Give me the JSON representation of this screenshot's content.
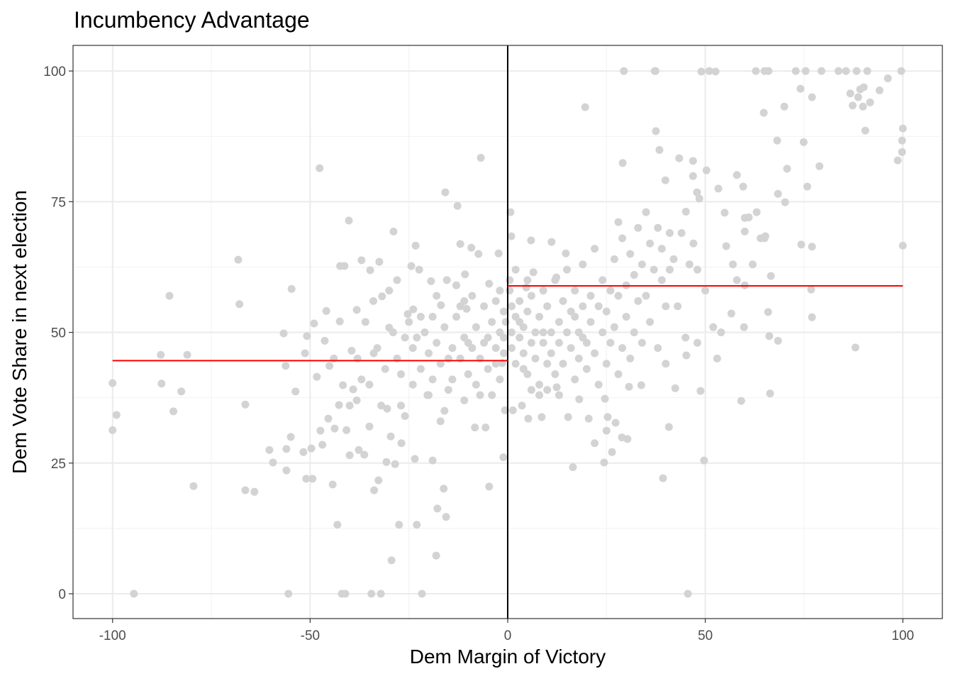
{
  "chart_data": {
    "type": "scatter",
    "title": "Incumbency Advantage",
    "xlabel": "Dem Margin of Victory",
    "ylabel": "Dem Vote Share in next election",
    "xlim": [
      -110,
      110
    ],
    "ylim": [
      -4.75,
      104.9
    ],
    "x_ticks": [
      -100,
      -50,
      0,
      50,
      100
    ],
    "x_tick_labels": [
      "-100",
      "-50",
      "0",
      "50",
      "100"
    ],
    "y_ticks": [
      0,
      25,
      50,
      75,
      100
    ],
    "y_tick_labels": [
      "0",
      "25",
      "50",
      "75",
      "100"
    ],
    "grid": true,
    "point_color": "#d3d3d3",
    "fit_color": "#ff0000",
    "cutoff_line": {
      "x": 0,
      "color": "#000000"
    },
    "fit_lines": [
      {
        "name": "left-fit",
        "x": [
          -100,
          0
        ],
        "y": [
          44.6,
          44.6
        ]
      },
      {
        "name": "right-fit",
        "x": [
          0,
          100
        ],
        "y": [
          58.9,
          58.9
        ]
      }
    ],
    "points": [
      [
        -100,
        40.3
      ],
      [
        -100,
        31.3
      ],
      [
        -99,
        34.2
      ],
      [
        -94.6,
        0
      ],
      [
        -87.8,
        45.7
      ],
      [
        -87.6,
        40.2
      ],
      [
        -85.6,
        57
      ],
      [
        -84.6,
        34.9
      ],
      [
        -82.6,
        38.7
      ],
      [
        -81.1,
        45.7
      ],
      [
        -79.5,
        20.6
      ],
      [
        -68.2,
        63.9
      ],
      [
        -67.9,
        55.4
      ],
      [
        -66.4,
        36.2
      ],
      [
        -66.4,
        19.8
      ],
      [
        -64.1,
        19.5
      ],
      [
        -60.3,
        27.5
      ],
      [
        -59.4,
        25.1
      ],
      [
        -56.7,
        49.8
      ],
      [
        -56.2,
        43.6
      ],
      [
        -56,
        27.7
      ],
      [
        -56,
        23.6
      ],
      [
        -55.5,
        0
      ],
      [
        -54.9,
        30
      ],
      [
        -54.7,
        58.3
      ],
      [
        -53.7,
        38.7
      ],
      [
        -51.7,
        27.1
      ],
      [
        -51.3,
        46
      ],
      [
        -51,
        22
      ],
      [
        -50.8,
        49.3
      ],
      [
        -49.7,
        27.8
      ],
      [
        -49.4,
        22
      ],
      [
        -49,
        51.7
      ],
      [
        -48.3,
        41.5
      ],
      [
        -47.6,
        81.4
      ],
      [
        -47.4,
        31.2
      ],
      [
        -46.9,
        28.5
      ],
      [
        -46.3,
        48.4
      ],
      [
        -45.9,
        54.1
      ],
      [
        -45.4,
        33.5
      ],
      [
        -45.1,
        43.6
      ],
      [
        -44.3,
        20.9
      ],
      [
        -43.8,
        31.6
      ],
      [
        -43.1,
        13.2
      ],
      [
        -42.7,
        36.1
      ],
      [
        -42.5,
        52.1
      ],
      [
        -42.4,
        62.7
      ],
      [
        -42,
        0
      ],
      [
        -41.7,
        39.9
      ],
      [
        -41.3,
        62.7
      ],
      [
        -41.1,
        0
      ],
      [
        -40.8,
        31.3
      ],
      [
        -40.2,
        71.4
      ],
      [
        -40,
        26.5
      ],
      [
        -39.5,
        46.5
      ],
      [
        -39.1,
        39.1
      ],
      [
        -38.2,
        37
      ],
      [
        -38.2,
        54.3
      ],
      [
        -37.7,
        27.5
      ],
      [
        -37,
        63.8
      ],
      [
        -36.3,
        26.6
      ],
      [
        -35,
        32
      ],
      [
        -34.8,
        61.9
      ],
      [
        -34.5,
        0
      ],
      [
        -33.9,
        46
      ],
      [
        -33.8,
        19.8
      ],
      [
        -32.7,
        21.7
      ],
      [
        -32.5,
        63.5
      ],
      [
        -32.1,
        0
      ],
      [
        -31.8,
        56.9
      ],
      [
        -30.7,
        25.2
      ],
      [
        -30.5,
        35.4
      ],
      [
        -30,
        50.9
      ],
      [
        -29.6,
        30.1
      ],
      [
        -29.4,
        6.4
      ],
      [
        -28.9,
        69.3
      ],
      [
        -28.5,
        24.8
      ],
      [
        -27.5,
        13.2
      ],
      [
        -26.9,
        28.8
      ],
      [
        -25.3,
        53.5
      ],
      [
        -24.4,
        62.7
      ],
      [
        -23.9,
        54.4
      ],
      [
        -23.5,
        25.8
      ],
      [
        -23.3,
        66.6
      ],
      [
        -23,
        13.2
      ],
      [
        -22.4,
        62
      ],
      [
        -21.7,
        0
      ],
      [
        -20.3,
        38
      ],
      [
        -19.4,
        59.8
      ],
      [
        -19,
        25.5
      ],
      [
        -18.1,
        7.3
      ],
      [
        -17.8,
        16.3
      ],
      [
        -16.9,
        55.2
      ],
      [
        -16.2,
        20.1
      ],
      [
        -15.8,
        76.8
      ],
      [
        -15.6,
        14.7
      ],
      [
        -15.4,
        60
      ],
      [
        -12.7,
        74.2
      ],
      [
        -12,
        66.9
      ],
      [
        -10.8,
        61.1
      ],
      [
        -10.4,
        54.5
      ],
      [
        -9.2,
        66.2
      ],
      [
        -8.3,
        31.8
      ],
      [
        -7.4,
        65
      ],
      [
        -6.8,
        83.4
      ],
      [
        -5.6,
        31.8
      ],
      [
        -4.7,
        20.5
      ],
      [
        -4.7,
        59.3
      ],
      [
        -2.3,
        65.1
      ],
      [
        -1.4,
        44.1
      ],
      [
        -1.1,
        26.1
      ],
      [
        -0.7,
        35.1
      ],
      [
        -28,
        45
      ],
      [
        -26,
        49
      ],
      [
        -25,
        52
      ],
      [
        -24,
        47
      ],
      [
        -22,
        43
      ],
      [
        -21,
        50
      ],
      [
        -20,
        46
      ],
      [
        -19,
        41
      ],
      [
        -18,
        48
      ],
      [
        -17,
        44
      ],
      [
        -16,
        51
      ],
      [
        -15,
        39
      ],
      [
        -14,
        47
      ],
      [
        -13,
        53
      ],
      [
        -12,
        45
      ],
      [
        -11,
        49
      ],
      [
        -10,
        42
      ],
      [
        -9,
        47
      ],
      [
        -8,
        51
      ],
      [
        -7,
        45
      ],
      [
        -6,
        48
      ],
      [
        -5,
        43
      ],
      [
        -4,
        52
      ],
      [
        -3,
        47
      ],
      [
        -2,
        50
      ],
      [
        -1,
        46
      ],
      [
        -1,
        54
      ],
      [
        -2,
        41
      ],
      [
        -3,
        56
      ],
      [
        -4,
        38
      ],
      [
        -6,
        55
      ],
      [
        -8,
        40
      ],
      [
        -9,
        57
      ],
      [
        -11,
        37
      ],
      [
        -12,
        55
      ],
      [
        -14,
        41
      ],
      [
        -16,
        35
      ],
      [
        -18,
        57
      ],
      [
        -20,
        38
      ],
      [
        -22,
        53
      ],
      [
        -24,
        40
      ],
      [
        -27,
        36
      ],
      [
        -29,
        50
      ],
      [
        -31,
        43
      ],
      [
        -33,
        47
      ],
      [
        -35,
        40
      ],
      [
        -36,
        52
      ],
      [
        -38,
        45
      ],
      [
        -40,
        36
      ],
      [
        -30,
        58
      ],
      [
        -26,
        34
      ],
      [
        -17,
        33
      ],
      [
        -13,
        59
      ],
      [
        -7,
        38
      ],
      [
        -5,
        49
      ],
      [
        -3,
        44
      ],
      [
        -1,
        49
      ],
      [
        -0.5,
        52
      ],
      [
        -2,
        58
      ],
      [
        -10,
        48
      ],
      [
        -15,
        45
      ],
      [
        -19,
        53
      ],
      [
        -23,
        49
      ],
      [
        -27,
        42
      ],
      [
        -32,
        36
      ],
      [
        -37,
        41
      ],
      [
        -44,
        45
      ],
      [
        -34,
        56
      ],
      [
        -28,
        60
      ],
      [
        -11,
        56
      ],
      [
        0.7,
        73
      ],
      [
        0.9,
        68.4
      ],
      [
        1.3,
        35.1
      ],
      [
        3.6,
        36
      ],
      [
        4.7,
        58.6
      ],
      [
        5.2,
        33.5
      ],
      [
        5.9,
        67.6
      ],
      [
        6.5,
        61.5
      ],
      [
        8.6,
        33.8
      ],
      [
        11.1,
        67.3
      ],
      [
        12.3,
        60.5
      ],
      [
        12.4,
        39.5
      ],
      [
        14.7,
        65.1
      ],
      [
        15.3,
        33.8
      ],
      [
        16.5,
        24.2
      ],
      [
        18.1,
        37.2
      ],
      [
        19.6,
        93.1
      ],
      [
        20.5,
        33.5
      ],
      [
        22,
        28.8
      ],
      [
        24.4,
        25.1
      ],
      [
        24.6,
        37.3
      ],
      [
        25,
        31.2
      ],
      [
        25.3,
        33.8
      ],
      [
        26.4,
        27.1
      ],
      [
        27.3,
        32.7
      ],
      [
        28,
        71.1
      ],
      [
        29.1,
        82.4
      ],
      [
        28.9,
        29.9
      ],
      [
        29.4,
        100
      ],
      [
        30.3,
        29.6
      ],
      [
        30.7,
        39.6
      ],
      [
        33.8,
        39.9
      ],
      [
        37.5,
        88.5
      ],
      [
        37.2,
        100
      ],
      [
        37.4,
        100
      ],
      [
        38.4,
        84.9
      ],
      [
        39.3,
        22.1
      ],
      [
        39.9,
        79.1
      ],
      [
        40.8,
        31.9
      ],
      [
        42.4,
        39.3
      ],
      [
        43.4,
        83.3
      ],
      [
        45.1,
        73.1
      ],
      [
        45.2,
        45.6
      ],
      [
        45.6,
        0
      ],
      [
        46.9,
        82.8
      ],
      [
        46.9,
        79.9
      ],
      [
        47.9,
        76.8
      ],
      [
        48.5,
        75.6
      ],
      [
        48.8,
        38.8
      ],
      [
        49,
        99.9
      ],
      [
        49.7,
        25.5
      ],
      [
        50.3,
        81
      ],
      [
        51,
        100
      ],
      [
        52.6,
        99.9
      ],
      [
        53.3,
        77.5
      ],
      [
        54.9,
        72.9
      ],
      [
        55.3,
        66.5
      ],
      [
        56.6,
        53.6
      ],
      [
        58,
        80.1
      ],
      [
        59.1,
        36.9
      ],
      [
        59.6,
        77.9
      ],
      [
        60,
        69.3
      ],
      [
        60,
        71.9
      ],
      [
        59.8,
        51
      ],
      [
        62.8,
        100
      ],
      [
        64.8,
        92
      ],
      [
        65,
        100
      ],
      [
        66,
        100
      ],
      [
        65.2,
        68.4
      ],
      [
        65.9,
        53.9
      ],
      [
        66.2,
        49.3
      ],
      [
        66.4,
        38.3
      ],
      [
        66.6,
        60.8
      ],
      [
        68.2,
        86.7
      ],
      [
        68.4,
        76.5
      ],
      [
        68.4,
        48.4
      ],
      [
        70,
        93.2
      ],
      [
        70.2,
        74.9
      ],
      [
        70.7,
        81.3
      ],
      [
        72.9,
        100
      ],
      [
        74.1,
        96.6
      ],
      [
        74.3,
        66.8
      ],
      [
        74.9,
        86.4
      ],
      [
        75.4,
        100
      ],
      [
        75.8,
        77.9
      ],
      [
        77,
        95
      ],
      [
        77,
        66.4
      ],
      [
        77,
        52.9
      ],
      [
        76.8,
        58.2
      ],
      [
        78.9,
        81.8
      ],
      [
        79.4,
        100
      ],
      [
        83.7,
        100
      ],
      [
        85.6,
        100
      ],
      [
        86.7,
        95.7
      ],
      [
        87.3,
        93.4
      ],
      [
        88,
        47.1
      ],
      [
        88.3,
        100
      ],
      [
        88.7,
        95
      ],
      [
        89.2,
        96.5
      ],
      [
        89.9,
        93.2
      ],
      [
        90.1,
        96.9
      ],
      [
        90.5,
        88.6
      ],
      [
        91,
        100
      ],
      [
        91.7,
        94
      ],
      [
        94.1,
        96.3
      ],
      [
        96.2,
        98.6
      ],
      [
        98.7,
        82.9
      ],
      [
        99.6,
        100
      ],
      [
        99.8,
        84.5
      ],
      [
        99.8,
        86.7
      ],
      [
        100,
        89
      ],
      [
        100,
        66.6
      ],
      [
        1,
        50
      ],
      [
        1,
        47
      ],
      [
        2,
        53
      ],
      [
        2,
        44
      ],
      [
        3,
        49
      ],
      [
        3,
        56
      ],
      [
        4,
        46
      ],
      [
        4,
        51
      ],
      [
        5,
        42
      ],
      [
        5,
        54
      ],
      [
        6,
        48
      ],
      [
        6,
        57
      ],
      [
        7,
        45
      ],
      [
        7,
        50
      ],
      [
        8,
        53
      ],
      [
        8,
        40
      ],
      [
        9,
        48
      ],
      [
        9,
        58
      ],
      [
        10,
        44
      ],
      [
        10,
        55
      ],
      [
        11,
        50
      ],
      [
        11,
        46
      ],
      [
        12,
        60
      ],
      [
        12,
        42
      ],
      [
        13,
        52
      ],
      [
        13,
        48
      ],
      [
        14,
        56
      ],
      [
        14,
        44
      ],
      [
        15,
        50
      ],
      [
        15,
        62
      ],
      [
        16,
        47
      ],
      [
        16,
        54
      ],
      [
        17,
        41
      ],
      [
        17,
        58
      ],
      [
        18,
        50
      ],
      [
        18,
        45
      ],
      [
        19,
        55
      ],
      [
        19,
        63
      ],
      [
        20,
        48
      ],
      [
        20,
        43
      ],
      [
        21,
        57
      ],
      [
        21,
        52
      ],
      [
        22,
        66
      ],
      [
        22,
        46
      ],
      [
        23,
        55
      ],
      [
        23,
        40
      ],
      [
        24,
        60
      ],
      [
        24,
        50
      ],
      [
        25,
        44
      ],
      [
        25,
        54
      ],
      [
        26,
        58
      ],
      [
        26,
        48
      ],
      [
        27,
        64
      ],
      [
        27,
        51
      ],
      [
        28,
        42
      ],
      [
        28,
        57
      ],
      [
        29,
        47
      ],
      [
        29,
        68
      ],
      [
        30,
        53
      ],
      [
        30,
        59
      ],
      [
        31,
        45
      ],
      [
        31,
        65
      ],
      [
        32,
        50
      ],
      [
        32,
        61
      ],
      [
        33,
        70
      ],
      [
        33,
        56
      ],
      [
        34,
        48
      ],
      [
        34,
        63
      ],
      [
        35,
        73
      ],
      [
        35,
        57
      ],
      [
        36,
        67
      ],
      [
        36,
        52
      ],
      [
        37,
        62
      ],
      [
        38,
        70
      ],
      [
        38,
        47
      ],
      [
        39,
        60
      ],
      [
        39,
        66
      ],
      [
        40,
        55
      ],
      [
        40,
        44
      ],
      [
        41,
        69
      ],
      [
        41,
        62
      ],
      [
        42,
        64
      ],
      [
        43,
        55
      ],
      [
        44,
        69
      ],
      [
        45,
        49
      ],
      [
        46,
        63
      ],
      [
        47,
        67
      ],
      [
        48,
        62
      ],
      [
        48,
        48
      ],
      [
        50,
        58
      ],
      [
        52,
        51
      ],
      [
        53,
        45
      ],
      [
        54,
        50
      ],
      [
        57,
        63
      ],
      [
        58,
        60
      ],
      [
        60,
        59
      ],
      [
        62,
        63
      ],
      [
        63,
        73
      ],
      [
        61,
        72
      ],
      [
        64,
        68
      ],
      [
        65,
        68
      ],
      [
        0.5,
        58
      ],
      [
        0.5,
        60
      ],
      [
        2,
        62
      ],
      [
        5,
        60
      ],
      [
        8,
        38
      ],
      [
        10,
        39
      ],
      [
        13,
        38
      ],
      [
        4,
        43
      ],
      [
        6,
        39
      ],
      [
        17,
        53
      ],
      [
        19,
        49
      ],
      [
        9,
        50
      ],
      [
        3,
        52
      ],
      [
        1,
        55
      ]
    ]
  }
}
